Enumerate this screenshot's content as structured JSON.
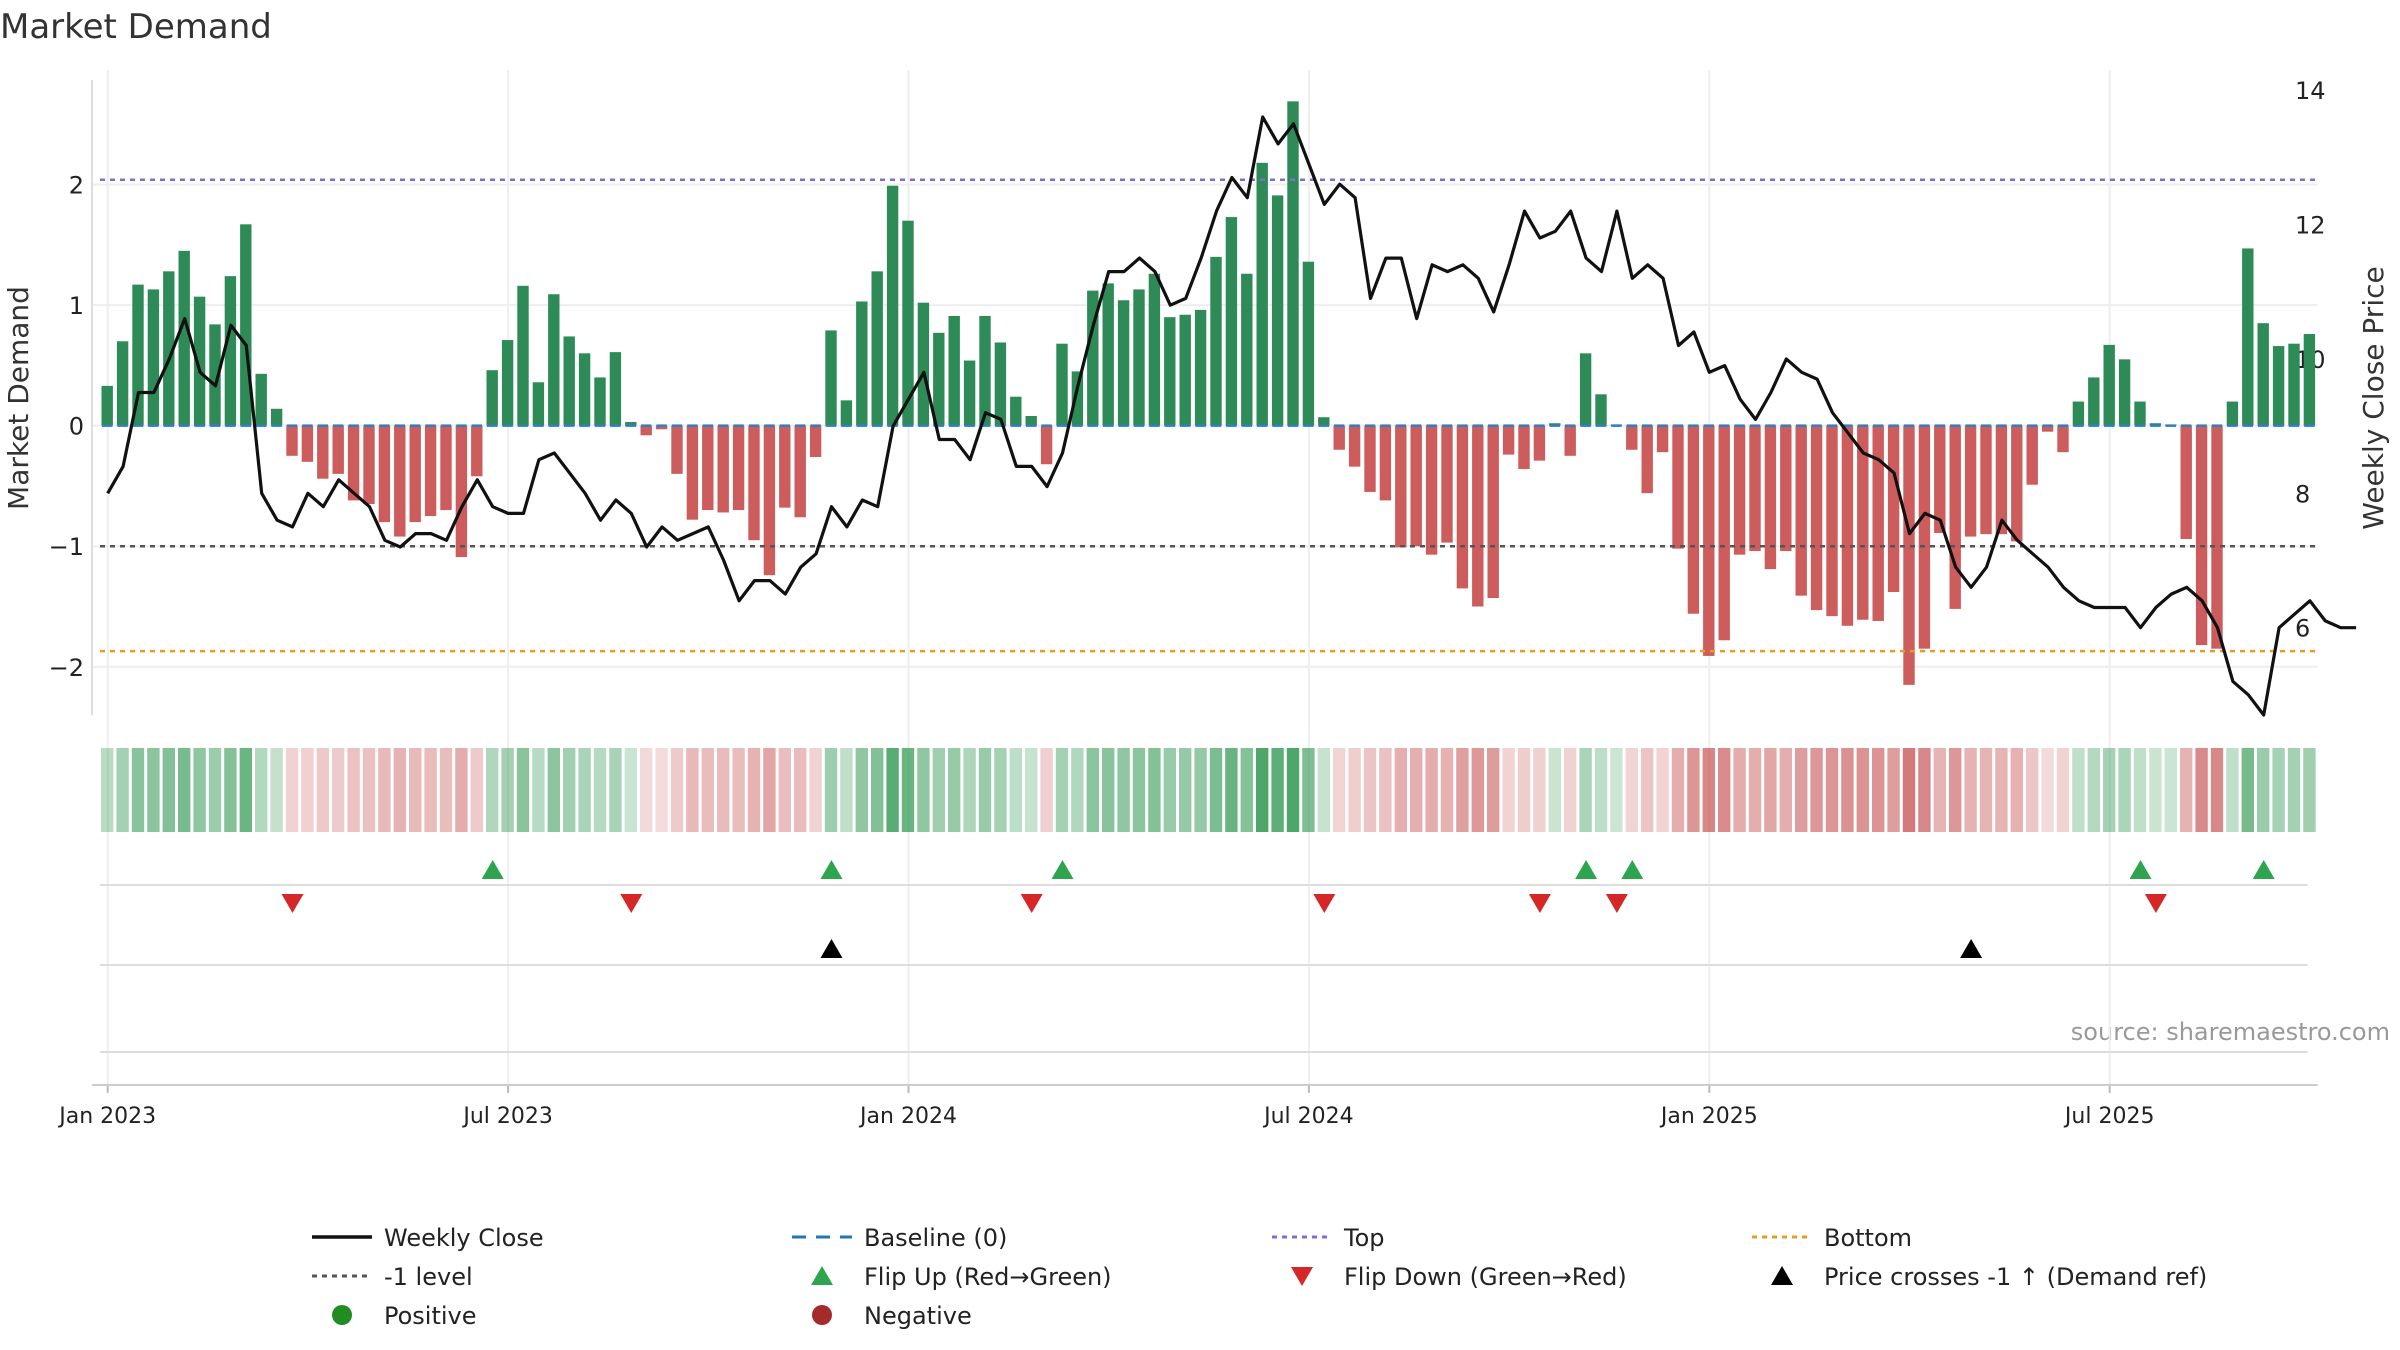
{
  "chart_data": {
    "type": "bar",
    "title": "Market Demand",
    "ylabel": "Market Demand",
    "y2label": "Weekly Close Price",
    "ylim": [
      -2.4,
      2.95
    ],
    "y2lim": [
      4.7,
      14.3
    ],
    "yticks": [
      2,
      1,
      0,
      -1,
      -2
    ],
    "ytick_labels": [
      "2",
      "1",
      "0",
      "−1",
      "−2"
    ],
    "y2ticks": [
      14,
      12,
      10,
      8,
      6
    ],
    "y2tick_labels": [
      "14",
      "12",
      "10",
      "8",
      "6"
    ],
    "xticks": [
      {
        "label": "Jan 2023",
        "week": 1
      },
      {
        "label": "Jul 2023",
        "week": 27
      },
      {
        "label": "Jan 2024",
        "week": 53
      },
      {
        "label": "Jul 2024",
        "week": 79
      },
      {
        "label": "Jan 2025",
        "week": 105
      },
      {
        "label": "Jul 2025",
        "week": 131
      }
    ],
    "reference_lines": {
      "top": 2.04,
      "minus_one": -1,
      "bottom": -1.87,
      "baseline": 0
    },
    "demand": [
      0.33,
      0.7,
      1.17,
      1.13,
      1.28,
      1.45,
      1.07,
      0.84,
      1.24,
      1.67,
      0.43,
      0.14,
      -0.25,
      -0.3,
      -0.44,
      -0.4,
      -0.62,
      -0.65,
      -0.8,
      -0.92,
      -0.8,
      -0.75,
      -0.7,
      -1.09,
      -0.42,
      0.46,
      0.71,
      1.16,
      0.36,
      1.09,
      0.74,
      0.6,
      0.4,
      0.61,
      0.03,
      -0.08,
      -0.03,
      -0.4,
      -0.78,
      -0.7,
      -0.72,
      -0.7,
      -0.95,
      -1.24,
      -0.68,
      -0.76,
      -0.26,
      0.79,
      0.21,
      1.03,
      1.28,
      1.99,
      1.7,
      1.02,
      0.77,
      0.91,
      0.54,
      0.91,
      0.69,
      0.24,
      0.08,
      -0.32,
      0.68,
      0.45,
      1.12,
      1.18,
      1.04,
      1.13,
      1.26,
      0.9,
      0.92,
      0.96,
      1.4,
      1.73,
      1.26,
      2.18,
      1.91,
      2.69,
      1.36,
      0.07,
      -0.2,
      -0.34,
      -0.55,
      -0.62,
      -1.01,
      -1.0,
      -1.07,
      -0.97,
      -1.35,
      -1.5,
      -1.43,
      -0.24,
      -0.36,
      -0.29,
      0.02,
      -0.25,
      0.6,
      0.26,
      0.01,
      -0.2,
      -0.56,
      -0.22,
      -1.02,
      -1.56,
      -1.91,
      -1.78,
      -1.07,
      -1.04,
      -1.19,
      -1.04,
      -1.41,
      -1.53,
      -1.58,
      -1.66,
      -1.61,
      -1.62,
      -1.38,
      -2.15,
      -1.85,
      -0.89,
      -1.52,
      -0.92,
      -0.9,
      -0.9,
      -0.96,
      -0.49,
      -0.05,
      -0.22,
      0.2,
      0.4,
      0.67,
      0.55,
      0.2,
      0.02,
      0.01,
      -0.94,
      -1.82,
      -1.85,
      0.2,
      1.47,
      0.85,
      0.66,
      0.68,
      0.76
    ],
    "close": [
      8.0,
      8.4,
      9.5,
      9.5,
      10.0,
      10.6,
      9.8,
      9.6,
      10.5,
      10.2,
      8.0,
      7.6,
      7.5,
      8.0,
      7.8,
      8.2,
      8.0,
      7.8,
      7.3,
      7.2,
      7.4,
      7.4,
      7.3,
      7.8,
      8.2,
      7.8,
      7.7,
      7.7,
      8.5,
      8.6,
      8.3,
      8.0,
      7.6,
      7.9,
      7.7,
      7.2,
      7.5,
      7.3,
      7.4,
      7.5,
      7.0,
      6.4,
      6.7,
      6.7,
      6.5,
      6.9,
      7.1,
      7.8,
      7.5,
      7.9,
      7.8,
      9.0,
      9.4,
      9.8,
      8.8,
      8.8,
      8.5,
      9.2,
      9.1,
      8.4,
      8.4,
      8.1,
      8.6,
      9.6,
      10.5,
      11.3,
      11.3,
      11.5,
      11.3,
      10.8,
      10.9,
      11.5,
      12.2,
      12.7,
      12.4,
      13.6,
      13.2,
      13.5,
      12.9,
      12.3,
      12.6,
      12.4,
      10.9,
      11.5,
      11.5,
      10.6,
      11.4,
      11.3,
      11.4,
      11.2,
      10.7,
      11.4,
      12.2,
      11.8,
      11.9,
      12.2,
      11.5,
      11.3,
      12.2,
      11.2,
      11.4,
      11.2,
      10.2,
      10.4,
      9.8,
      9.9,
      9.4,
      9.1,
      9.5,
      10.0,
      9.8,
      9.7,
      9.2,
      8.9,
      8.6,
      8.5,
      8.3,
      7.4,
      7.7,
      7.6,
      6.9,
      6.6,
      6.9,
      7.6,
      7.3,
      7.1,
      6.9,
      6.6,
      6.4,
      6.3,
      6.3,
      6.3,
      6.0,
      6.3,
      6.5,
      6.6,
      6.4,
      6.0,
      5.2,
      5.0,
      4.7,
      6.0,
      6.2,
      6.4,
      6.1,
      6.0,
      6.0
    ],
    "flip_up_weeks": [
      25,
      47,
      62,
      96,
      99,
      132,
      140
    ],
    "flip_down_weeks": [
      12,
      34,
      60,
      79,
      93,
      98,
      133
    ],
    "cross_weeks": [
      47,
      121
    ],
    "source": "source: sharemaestro.com"
  },
  "legend": [
    {
      "label": "Weekly Close",
      "symbol": "line",
      "color": "#111111"
    },
    {
      "label": "Baseline (0)",
      "symbol": "dashed",
      "color": "#1f77b4"
    },
    {
      "label": "Top",
      "symbol": "dotted",
      "color": "#7b6fd6"
    },
    {
      "label": "Bottom",
      "symbol": "dotted",
      "color": "#e89d1e"
    },
    {
      "label": "-1 level",
      "symbol": "dotted",
      "color": "#555555"
    },
    {
      "label": "Flip Up (Red→Green)",
      "symbol": "triangle-up",
      "color": "#2ea44f"
    },
    {
      "label": "Flip Down (Green→Red)",
      "symbol": "triangle-down",
      "color": "#d62728"
    },
    {
      "label": "Price crosses -1 ↑ (Demand ref)",
      "symbol": "triangle-up",
      "color": "#000000"
    },
    {
      "label": "Positive",
      "symbol": "dot",
      "color": "#228b22"
    },
    {
      "label": "Negative",
      "symbol": "dot",
      "color": "#a52a2a"
    }
  ],
  "colors": {
    "positive_bar": "#2e8b57",
    "negative_bar": "#cd5c5c",
    "close_line": "#111111",
    "grid": "#eeeeee"
  }
}
